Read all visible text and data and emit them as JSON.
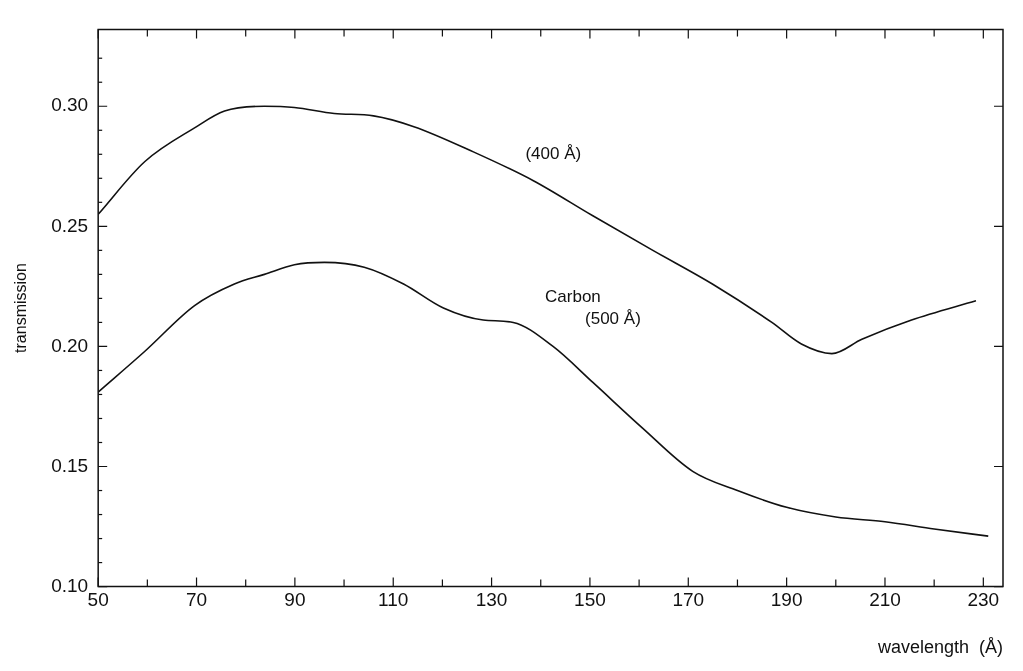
{
  "chart_data": {
    "type": "line",
    "xlabel": "wavelength  (Å)",
    "ylabel": "transmission",
    "xlim": [
      50,
      234
    ],
    "ylim": [
      0.1,
      0.332
    ],
    "xticks": [
      50,
      {
        "value": 60,
        "label": null
      },
      70,
      {
        "value": 80,
        "label": null
      },
      90,
      {
        "value": 100,
        "label": null
      },
      110,
      {
        "value": 120,
        "label": null
      },
      130,
      {
        "value": 140,
        "label": null
      },
      150,
      {
        "value": 160,
        "label": null
      },
      170,
      {
        "value": 180,
        "label": null
      },
      190,
      {
        "value": 200,
        "label": null
      },
      210,
      {
        "value": 220,
        "label": null
      },
      230
    ],
    "yticks": [
      {
        "value": 0.1,
        "label": "0.10"
      },
      {
        "value": 0.11,
        "label": null
      },
      {
        "value": 0.12,
        "label": null
      },
      {
        "value": 0.13,
        "label": null
      },
      {
        "value": 0.14,
        "label": null
      },
      0.15,
      {
        "value": 0.16,
        "label": null
      },
      {
        "value": 0.17,
        "label": null
      },
      {
        "value": 0.18,
        "label": null
      },
      {
        "value": 0.19,
        "label": null
      },
      {
        "value": 0.2,
        "label": "0.20"
      },
      {
        "value": 0.21,
        "label": null
      },
      {
        "value": 0.22,
        "label": null
      },
      {
        "value": 0.23,
        "label": null
      },
      {
        "value": 0.24,
        "label": null
      },
      0.25,
      {
        "value": 0.26,
        "label": null
      },
      {
        "value": 0.27,
        "label": null
      },
      {
        "value": 0.28,
        "label": null
      },
      {
        "value": 0.29,
        "label": null
      },
      {
        "value": 0.3,
        "label": "0.30"
      },
      {
        "value": 0.31,
        "label": null
      },
      {
        "value": 0.32,
        "label": null
      }
    ],
    "grid": false,
    "legend": false,
    "marker": "none",
    "line_style": "solid",
    "series": [
      {
        "name": "(400 Å)",
        "color": "#111111",
        "x": [
          50,
          59.5,
          69.6,
          75.7,
          83.8,
          89.9,
          98,
          106,
          114.2,
          126.3,
          138.5,
          150.5,
          162.8,
          174.9,
          187,
          193,
          199.2,
          205.3,
          215.4,
          228.5
        ],
        "values": [
          0.255,
          0.277,
          0.291,
          0.298,
          0.3,
          0.2995,
          0.297,
          0.296,
          0.2915,
          0.281,
          0.269,
          0.2545,
          0.24,
          0.226,
          0.21,
          0.201,
          0.197,
          0.203,
          0.211,
          0.219
        ]
      },
      {
        "name": "Carbon (500 Å)",
        "color": "#111111",
        "x": [
          50,
          59.5,
          69.6,
          77.7,
          83.8,
          89.9,
          96,
          104.1,
          112.1,
          120.2,
          128.3,
          134.4,
          142.5,
          150.6,
          160.7,
          170.9,
          180,
          190,
          200,
          210,
          220,
          231
        ],
        "values": [
          0.181,
          0.198,
          0.217,
          0.226,
          0.23,
          0.234,
          0.235,
          0.233,
          0.226,
          0.216,
          0.211,
          0.21,
          0.2,
          0.185,
          0.166,
          0.148,
          0.14,
          0.133,
          0.129,
          0.127,
          0.124,
          0.121
        ]
      }
    ]
  }
}
